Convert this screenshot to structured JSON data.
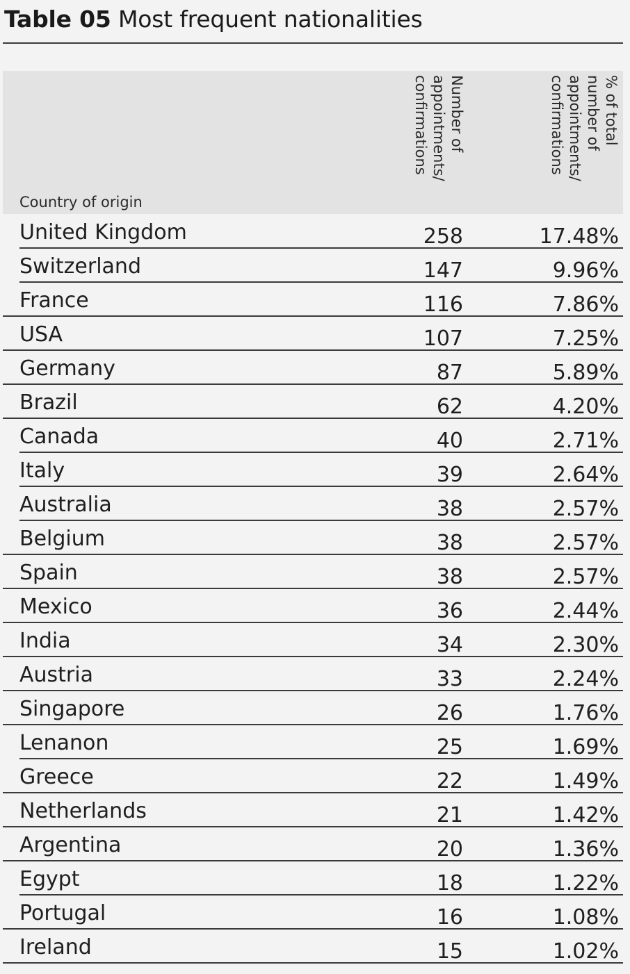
{
  "title": {
    "label": "Table 05",
    "text": "Most frequent nationalities"
  },
  "table": {
    "headers": {
      "country": "Country of origin",
      "count": "Number of\nappointments/\nconfirmations",
      "percent": "% of total\nnumber of\nappointments/\nconfirmations"
    },
    "rows": [
      {
        "country": "United Kingdom",
        "count": "258",
        "percent": "17.48%"
      },
      {
        "country": "Switzerland",
        "count": "147",
        "percent": "9.96%"
      },
      {
        "country": "France",
        "count": "116",
        "percent": "7.86%"
      },
      {
        "country": "USA",
        "count": "107",
        "percent": "7.25%"
      },
      {
        "country": "Germany",
        "count": "87",
        "percent": "5.89%"
      },
      {
        "country": "Brazil",
        "count": "62",
        "percent": "4.20%"
      },
      {
        "country": "Canada",
        "count": "40",
        "percent": "2.71%"
      },
      {
        "country": "Italy",
        "count": "39",
        "percent": "2.64%"
      },
      {
        "country": "Australia",
        "count": "38",
        "percent": "2.57%"
      },
      {
        "country": "Belgium",
        "count": "38",
        "percent": "2.57%"
      },
      {
        "country": "Spain",
        "count": "38",
        "percent": "2.57%"
      },
      {
        "country": "Mexico",
        "count": "36",
        "percent": "2.44%"
      },
      {
        "country": "India",
        "count": "34",
        "percent": "2.30%"
      },
      {
        "country": "Austria",
        "count": "33",
        "percent": "2.24%"
      },
      {
        "country": "Singapore",
        "count": "26",
        "percent": "1.76%"
      },
      {
        "country": "Lenanon",
        "count": "25",
        "percent": "1.69%"
      },
      {
        "country": "Greece",
        "count": "22",
        "percent": "1.49%"
      },
      {
        "country": "Netherlands",
        "count": "21",
        "percent": "1.42%"
      },
      {
        "country": "Argentina",
        "count": "20",
        "percent": "1.36%"
      },
      {
        "country": "Egypt",
        "count": "18",
        "percent": "1.22%"
      },
      {
        "country": "Portugal",
        "count": "16",
        "percent": "1.08%"
      },
      {
        "country": "Ireland",
        "count": "15",
        "percent": "1.02%"
      }
    ]
  }
}
